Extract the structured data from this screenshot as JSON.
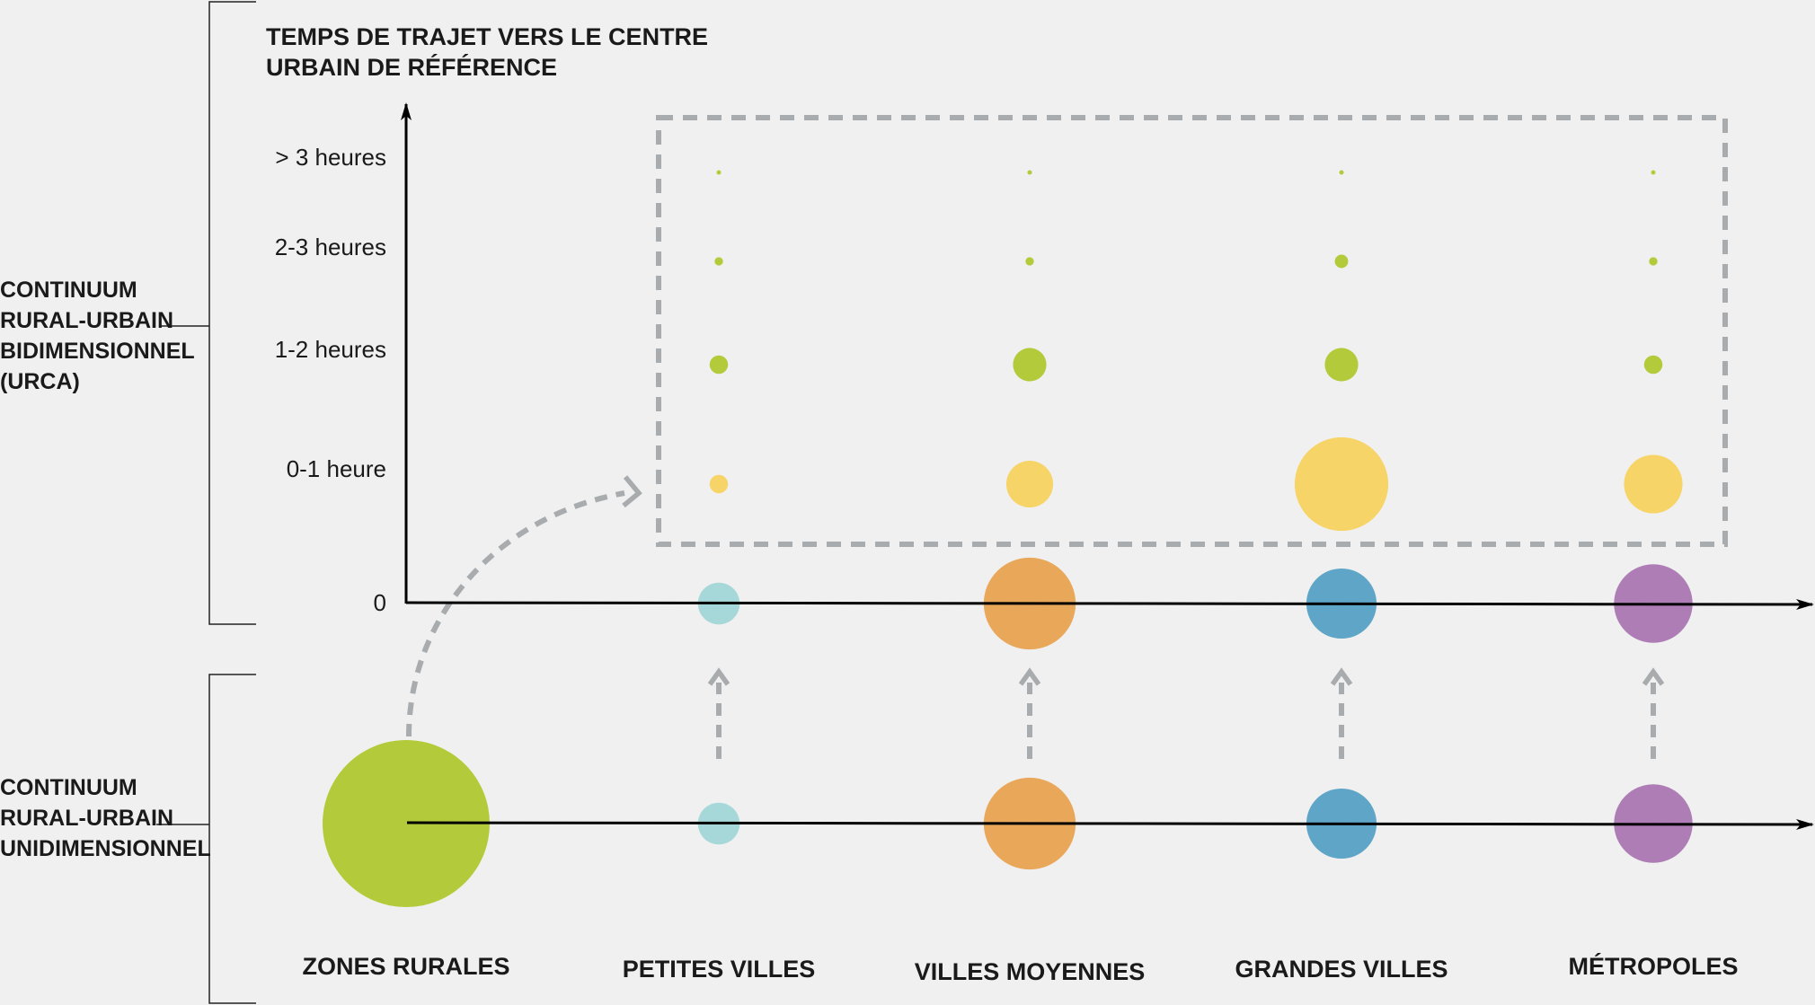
{
  "chart_data": {
    "type": "diagram-bubble",
    "yaxis_title": [
      "TEMPS DE TRAJET VERS LE CENTRE",
      "URBAIN DE RÉFÉRENCE"
    ],
    "y_origin_label": "0",
    "y_categories": [
      "0-1 heure",
      "1-2 heures",
      "2-3 heures",
      "> 3 heures"
    ],
    "x_categories": [
      "ZONES RURALES",
      "PETITES VILLES",
      "VILLES MOYENNES",
      "GRANDES VILLES",
      "MÉTROPOLES"
    ],
    "section_bidimensional": [
      "CONTINUUM",
      "RURAL-URBAIN",
      "BIDIMENSIONNEL",
      "(URCA)"
    ],
    "section_unidimensional": [
      "CONTINUUM",
      "RURAL-URBAIN",
      "UNIDIMENSIONNEL"
    ],
    "category_colors": [
      "#b3cb3a",
      "#a7d8d9",
      "#e9a75a",
      "#5ea5c7",
      "#ae7db6"
    ],
    "travel_colors": [
      "#f7d467",
      "#b3cb3a",
      "#b3cb3a",
      "#b3cb3a"
    ],
    "unidimensional_sizes": [
      1.0,
      0.25,
      0.55,
      0.42,
      0.47
    ],
    "urca_baseline_sizes": [
      0.25,
      0.55,
      0.42,
      0.47
    ],
    "urca_bubble_sizes": [
      [
        0.11,
        0.28,
        0.56,
        0.35
      ],
      [
        0.11,
        0.2,
        0.2,
        0.11
      ],
      [
        0.05,
        0.05,
        0.08,
        0.05
      ],
      [
        0.02,
        0.02,
        0.02,
        0.02
      ]
    ]
  }
}
